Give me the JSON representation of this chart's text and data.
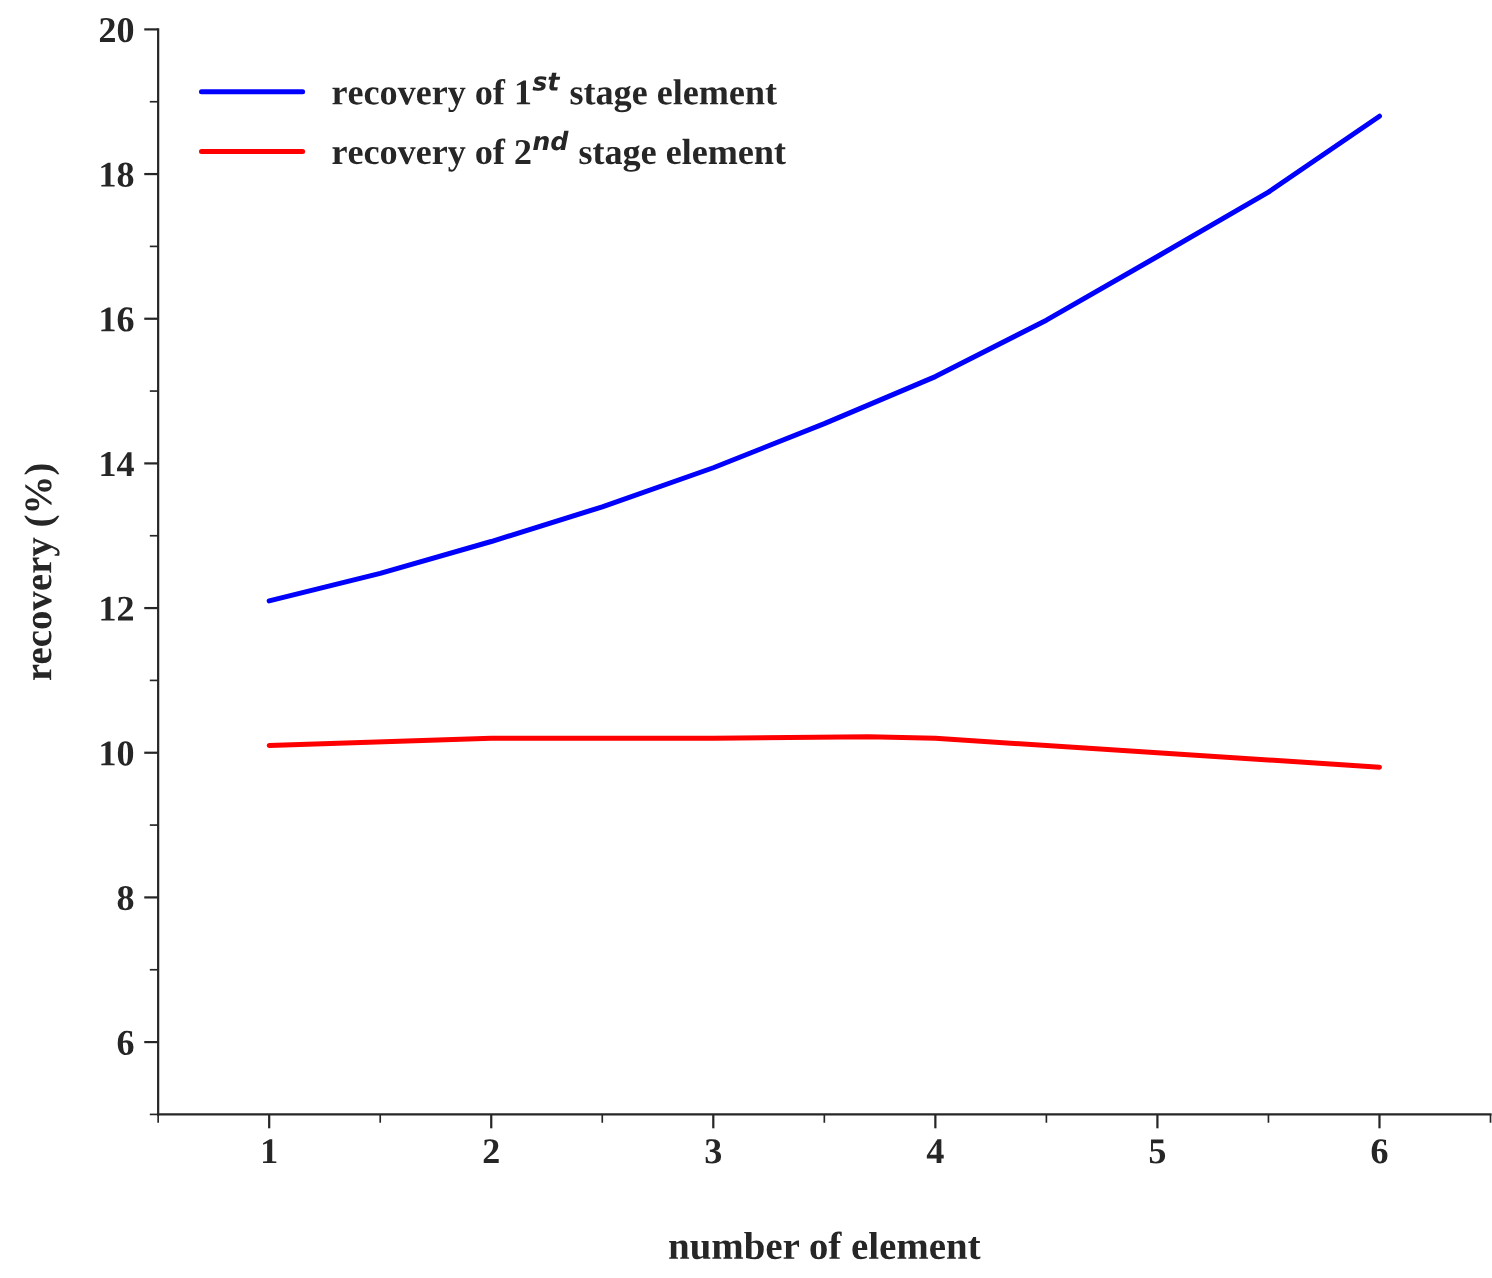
{
  "chart_data": {
    "type": "line",
    "xlabel": "number of element",
    "ylabel": "recovery (%)",
    "xlim": [
      0.5,
      6.5
    ],
    "xticks": [
      1,
      2,
      3,
      4,
      5,
      6
    ],
    "ylim": [
      5,
      20
    ],
    "yticks": [
      6,
      8,
      10,
      12,
      14,
      16,
      18,
      20
    ],
    "grid": false,
    "legend": "top left",
    "marker": "none",
    "line_style": "solid",
    "series": [
      {
        "name": "recovery of 1$^{st}$ stage element",
        "color": "#0000ff",
        "x": [
          1,
          1.5,
          2,
          2.5,
          3,
          3.5,
          4,
          4.5,
          5,
          5.5,
          6
        ],
        "values": [
          12.1,
          12.48,
          12.92,
          13.4,
          13.94,
          14.55,
          15.2,
          15.98,
          16.86,
          17.75,
          18.8
        ]
      },
      {
        "name": "recovery of 2$^{nd}$ stage element",
        "color": "#ff0000",
        "x": [
          1,
          2,
          3,
          3.7,
          4,
          5,
          6
        ],
        "values": [
          10.1,
          10.2,
          10.2,
          10.22,
          10.2,
          10.0,
          9.8
        ]
      }
    ]
  }
}
